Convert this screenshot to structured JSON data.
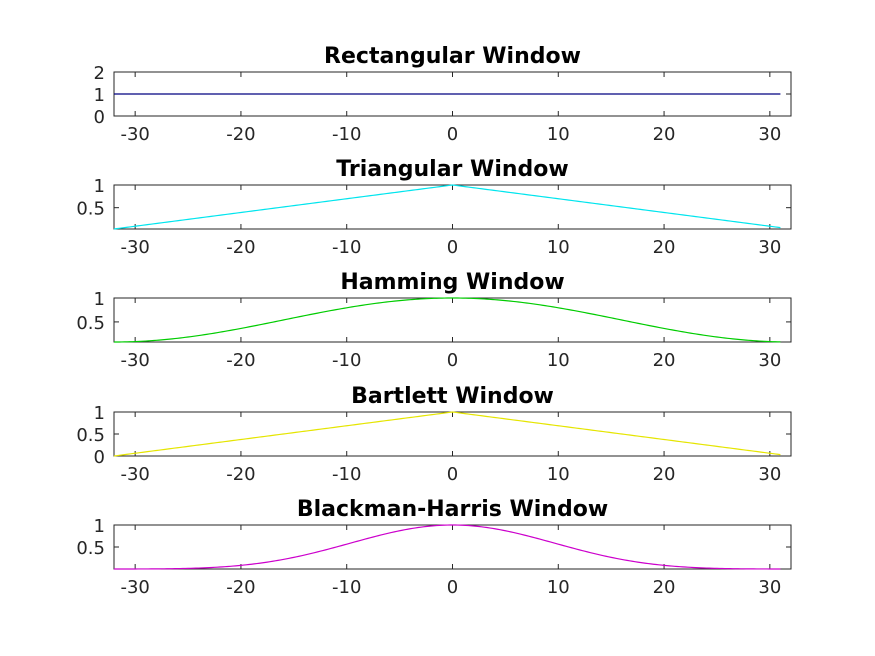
{
  "chart_data": [
    {
      "type": "line",
      "title": "Rectangular Window",
      "color": "#000080",
      "window": "rectangular",
      "xlim": [
        -32,
        32
      ],
      "ylim": [
        0,
        2
      ],
      "xticks": [
        "-30",
        "-20",
        "-10",
        "0",
        "10",
        "20",
        "30"
      ],
      "xtick_values": [
        -30,
        -20,
        -10,
        0,
        10,
        20,
        30
      ],
      "yticks": [
        "0",
        "1",
        "2"
      ],
      "ytick_values": [
        0,
        1,
        2
      ],
      "series": [
        {
          "x_range": [
            -32,
            31
          ],
          "y_min": 1,
          "y_max": 1
        }
      ]
    },
    {
      "type": "line",
      "title": "Triangular Window",
      "color": "#00e5ee",
      "window": "triangular",
      "xlim": [
        -32,
        32
      ],
      "ylim": [
        0.03,
        1
      ],
      "xticks": [
        "-30",
        "-20",
        "-10",
        "0",
        "10",
        "20",
        "30"
      ],
      "xtick_values": [
        -30,
        -20,
        -10,
        0,
        10,
        20,
        30
      ],
      "yticks": [
        "0.5",
        "1"
      ],
      "ytick_values": [
        0.5,
        1
      ],
      "series": [
        {
          "x_range": [
            -32,
            31
          ],
          "y_min": 0.03,
          "y_max": 1
        }
      ]
    },
    {
      "type": "line",
      "title": "Hamming Window",
      "color": "#00cc00",
      "window": "hamming",
      "xlim": [
        -32,
        32
      ],
      "ylim": [
        0.08,
        1
      ],
      "xticks": [
        "-30",
        "-20",
        "-10",
        "0",
        "10",
        "20",
        "30"
      ],
      "xtick_values": [
        -30,
        -20,
        -10,
        0,
        10,
        20,
        30
      ],
      "yticks": [
        "0.5",
        "1"
      ],
      "ytick_values": [
        0.5,
        1
      ],
      "series": [
        {
          "x_range": [
            -32,
            31
          ],
          "y_min": 0.08,
          "y_max": 1
        }
      ]
    },
    {
      "type": "line",
      "title": "Bartlett Window",
      "color": "#e5e500",
      "window": "bartlett",
      "xlim": [
        -32,
        32
      ],
      "ylim": [
        0,
        1
      ],
      "xticks": [
        "-30",
        "-20",
        "-10",
        "0",
        "10",
        "20",
        "30"
      ],
      "xtick_values": [
        -30,
        -20,
        -10,
        0,
        10,
        20,
        30
      ],
      "yticks": [
        "0",
        "0.5",
        "1"
      ],
      "ytick_values": [
        0,
        0.5,
        1
      ],
      "series": [
        {
          "x_range": [
            -32,
            31
          ],
          "y_min": 0,
          "y_max": 1
        }
      ]
    },
    {
      "type": "line",
      "title": "Blackman-Harris Window",
      "color": "#cc00cc",
      "window": "blackman-harris",
      "xlim": [
        -32,
        32
      ],
      "ylim": [
        0,
        1
      ],
      "xticks": [
        "-30",
        "-20",
        "-10",
        "0",
        "10",
        "20",
        "30"
      ],
      "xtick_values": [
        -30,
        -20,
        -10,
        0,
        10,
        20,
        30
      ],
      "yticks": [
        "0.5",
        "1"
      ],
      "ytick_values": [
        0.5,
        1
      ],
      "series": [
        {
          "x_range": [
            -32,
            31
          ],
          "y_min": 0,
          "y_max": 1
        }
      ]
    }
  ]
}
